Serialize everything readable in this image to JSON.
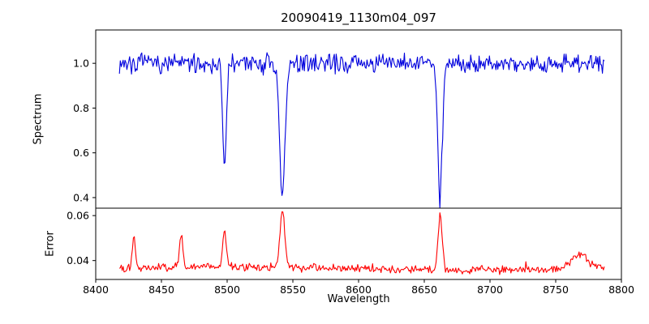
{
  "figure": {
    "title": "20090419_1130m04_097",
    "xlabel": "Wavelength",
    "background": "#ffffff"
  },
  "chart_data": [
    {
      "type": "line",
      "panel": "spectrum",
      "title": "20090419_1130m04_097",
      "ylabel": "Spectrum",
      "line_color": "#0000dd",
      "xlim": [
        8400,
        8800
      ],
      "ylim": [
        0.3527,
        1.149
      ],
      "yticks": [
        1.0,
        0.8,
        0.6,
        0.4
      ],
      "ytick_labels": [
        "1.0",
        "0.8",
        "0.6",
        "0.4"
      ],
      "x_data_range": [
        8418,
        8787
      ],
      "n_points": 520,
      "continuum": 1.0,
      "noise_amplitude": 0.05,
      "absorption_lines": [
        {
          "center": 8498.0,
          "depth": 0.47,
          "sigma": 1.4
        },
        {
          "center": 8542.0,
          "depth": 0.6,
          "sigma": 2.1
        },
        {
          "center": 8662.0,
          "depth": 0.59,
          "sigma": 1.7
        }
      ],
      "legend": "none",
      "grid": false
    },
    {
      "type": "line",
      "panel": "error",
      "ylabel": "Error",
      "xlabel": "Wavelength",
      "line_color": "#ff0000",
      "xlim": [
        8400,
        8800
      ],
      "ylim": [
        0.0316,
        0.0633
      ],
      "yticks": [
        0.06,
        0.04
      ],
      "ytick_labels": [
        "0.06",
        "0.04"
      ],
      "xticks": [
        8400,
        8450,
        8500,
        8550,
        8600,
        8650,
        8700,
        8750,
        8800
      ],
      "xtick_labels": [
        "8400",
        "8450",
        "8500",
        "8550",
        "8600",
        "8650",
        "8700",
        "8750",
        "8800"
      ],
      "x_data_range": [
        8418,
        8787
      ],
      "n_points": 520,
      "baseline": 0.0365,
      "noise_amplitude": 0.0022,
      "spikes": [
        {
          "center": 8429,
          "height": 0.0135,
          "sigma": 1.2
        },
        {
          "center": 8465,
          "height": 0.014,
          "sigma": 1.2
        },
        {
          "center": 8498,
          "height": 0.015,
          "sigma": 1.5
        },
        {
          "center": 8542,
          "height": 0.0255,
          "sigma": 1.9
        },
        {
          "center": 8662,
          "height": 0.0245,
          "sigma": 1.6
        },
        {
          "center": 8768,
          "height": 0.006,
          "sigma": 6.0
        }
      ],
      "legend": "none",
      "grid": false
    }
  ]
}
